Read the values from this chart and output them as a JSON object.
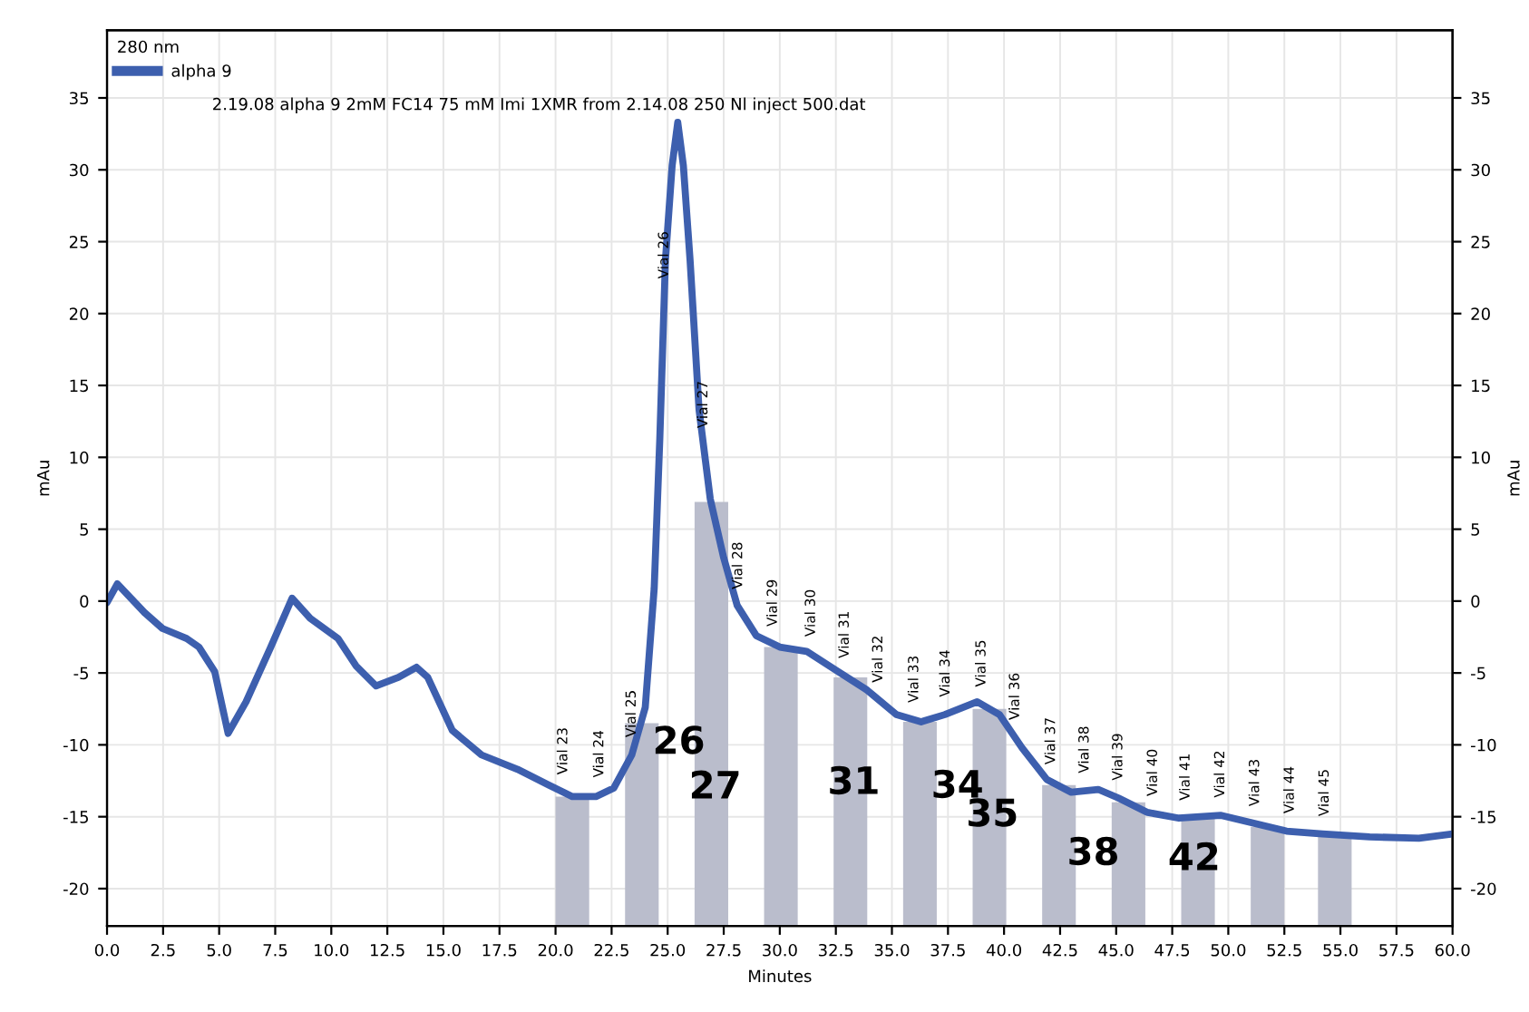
{
  "chart_data": {
    "type": "line",
    "legend_title": "280 nm",
    "subtitle": "2.19.08 alpha 9 2mM FC14 75 mM Imi 1XMR from 2.14.08 250 Nl inject 500.dat",
    "xlabel": "Minutes",
    "ylabel": "mAu",
    "y2label": "mAu",
    "series": [
      {
        "name": "alpha 9",
        "color": "#3d5fae",
        "line_style": "solid",
        "x": [
          0,
          0.46,
          1.67,
          2.47,
          3.55,
          4.1,
          4.8,
          5.4,
          6.2,
          7.3,
          8.25,
          9.06,
          10.3,
          11.1,
          12.0,
          13.0,
          13.8,
          14.3,
          15.4,
          16.7,
          18.3,
          19.7,
          20.75,
          21.8,
          22.6,
          23.4,
          24.0,
          24.4,
          24.65,
          24.9,
          25.2,
          25.45,
          25.7,
          26.0,
          26.4,
          26.9,
          27.5,
          28.1,
          28.95,
          30.0,
          31.2,
          32.5,
          33.9,
          35.2,
          36.3,
          37.35,
          38.8,
          39.8,
          40.8,
          41.9,
          43.0,
          44.2,
          45.1,
          46.4,
          47.8,
          49.65,
          51.0,
          52.6,
          54.2,
          56.3,
          58.5,
          60.0
        ],
        "values": [
          -0.1,
          1.2,
          -0.8,
          -1.9,
          -2.6,
          -3.2,
          -4.9,
          -9.2,
          -7.0,
          -3.2,
          0.2,
          -1.2,
          -2.6,
          -4.5,
          -5.9,
          -5.3,
          -4.6,
          -5.3,
          -9.0,
          -10.7,
          -11.7,
          -12.8,
          -13.6,
          -13.6,
          -13.0,
          -10.7,
          -7.4,
          0.9,
          11.3,
          23.7,
          30.3,
          33.3,
          30.3,
          23.7,
          13.3,
          7.1,
          3.0,
          -0.3,
          -2.4,
          -3.2,
          -3.5,
          -4.8,
          -6.2,
          -7.9,
          -8.4,
          -7.9,
          -7.0,
          -7.9,
          -10.2,
          -12.4,
          -13.3,
          -13.1,
          -13.7,
          -14.7,
          -15.1,
          -14.9,
          -15.4,
          -16.0,
          -16.2,
          -16.4,
          -16.5,
          -16.2
        ]
      },
      {
        "type": "bar",
        "color": "#babdcc",
        "x": [
          20.75,
          23.85,
          26.95,
          30.05,
          33.15,
          36.25,
          39.35,
          42.45,
          45.55,
          48.65,
          51.75,
          54.75
        ],
        "base": [
          -22.6,
          -22.6,
          -22.6,
          -22.6,
          -22.6,
          -22.6,
          -22.6,
          -22.6,
          -22.6,
          -22.6,
          -22.6,
          -22.6
        ],
        "values": [
          9.0,
          14.1,
          29.5,
          19.4,
          17.3,
          14.2,
          15.1,
          9.8,
          8.6,
          7.6,
          6.9,
          6.4
        ]
      }
    ],
    "annotations": [
      {
        "text": "Vial 23",
        "x": 20.35,
        "y": -13.3
      },
      {
        "text": "Vial 24",
        "x": 21.96,
        "y": -13.5
      },
      {
        "text": "Vial 25",
        "x": 23.4,
        "y": -10.7
      },
      {
        "text": "Vial 26",
        "x": 24.85,
        "y": 21.2
      },
      {
        "text": "Vial 27",
        "x": 26.6,
        "y": 10.8
      },
      {
        "text": "Vial 28",
        "x": 28.15,
        "y": -0.4
      },
      {
        "text": "Vial 29",
        "x": 29.7,
        "y": -3.0
      },
      {
        "text": "Vial 30",
        "x": 31.4,
        "y": -3.7
      },
      {
        "text": "Vial 31",
        "x": 32.9,
        "y": -5.2
      },
      {
        "text": "Vial 32",
        "x": 34.4,
        "y": -6.9
      },
      {
        "text": "Vial 33",
        "x": 36.0,
        "y": -8.3
      },
      {
        "text": "Vial 34",
        "x": 37.4,
        "y": -7.9
      },
      {
        "text": "Vial 35",
        "x": 39.0,
        "y": -7.2
      },
      {
        "text": "Vial 36",
        "x": 40.5,
        "y": -9.5
      },
      {
        "text": "Vial 37",
        "x": 42.1,
        "y": -12.6
      },
      {
        "text": "Vial 38",
        "x": 43.6,
        "y": -13.2
      },
      {
        "text": "Vial 39",
        "x": 45.1,
        "y": -13.7
      },
      {
        "text": "Vial 40",
        "x": 46.65,
        "y": -14.8
      },
      {
        "text": "Vial 41",
        "x": 48.1,
        "y": -15.1
      },
      {
        "text": "Vial 42",
        "x": 49.65,
        "y": -14.9
      },
      {
        "text": "Vial 43",
        "x": 51.2,
        "y": -15.5
      },
      {
        "text": "Vial 44",
        "x": 52.75,
        "y": -16.0
      },
      {
        "text": "Vial 45",
        "x": 54.3,
        "y": -16.2
      },
      "26",
      "27",
      "31",
      "34",
      "35",
      "38",
      "42"
    ],
    "xlim": [
      0,
      60
    ],
    "ylim": [
      -22.6,
      39.7
    ],
    "y2lim": [
      -22.6,
      39.7
    ],
    "xticks": [
      {
        "value": 0,
        "label": "0.0"
      },
      {
        "value": 2.5,
        "label": "2.5"
      },
      {
        "value": 5,
        "label": "5.0"
      },
      {
        "value": 7.5,
        "label": "7.5"
      },
      {
        "value": 10,
        "label": "10.0"
      },
      {
        "value": 12.5,
        "label": "12.5"
      },
      {
        "value": 15,
        "label": "15.0"
      },
      {
        "value": 17.5,
        "label": "17.5"
      },
      {
        "value": 20,
        "label": "20.0"
      },
      {
        "value": 22.5,
        "label": "22.5"
      },
      {
        "value": 25,
        "label": "25.0"
      },
      {
        "value": 27.5,
        "label": "27.5"
      },
      {
        "value": 30,
        "label": "30.0"
      },
      {
        "value": 32.5,
        "label": "32.5"
      },
      {
        "value": 35,
        "label": "35.0"
      },
      {
        "value": 37.5,
        "label": "37.5"
      },
      {
        "value": 40,
        "label": "40.0"
      },
      {
        "value": 42.5,
        "label": "42.5"
      },
      {
        "value": 45,
        "label": "45.0"
      },
      {
        "value": 47.5,
        "label": "47.5"
      },
      {
        "value": 50,
        "label": "50.0"
      },
      {
        "value": 52.5,
        "label": "52.5"
      },
      {
        "value": 55,
        "label": "55.0"
      },
      {
        "value": 57.5,
        "label": "57.5"
      },
      {
        "value": 60,
        "label": "60.0"
      }
    ],
    "yticks": [
      -20,
      -15,
      -10,
      -5,
      0,
      5,
      10,
      15,
      20,
      25,
      30,
      35
    ],
    "y2ticks": [
      -20,
      -15,
      -10,
      -5,
      0,
      5,
      10,
      15,
      20,
      25,
      30,
      35
    ],
    "grid": true,
    "legend": "top left"
  }
}
